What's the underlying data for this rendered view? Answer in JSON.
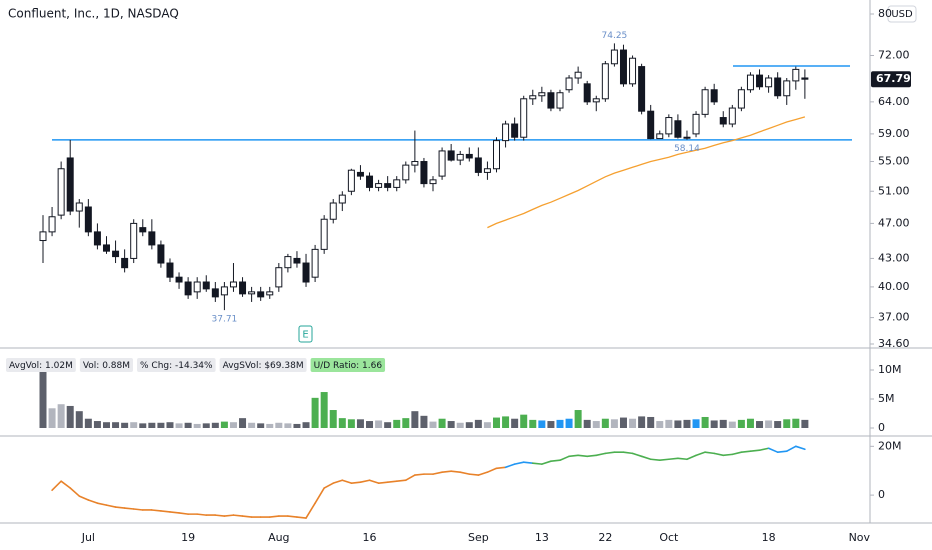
{
  "chart_data": [
    {
      "type": "candlestick",
      "title": "Confluent, Inc., 1D, NASDAQ",
      "currency": "USD",
      "earnings_marker": "E",
      "log_scale": true,
      "color_up": "#ffffff",
      "color_down": "#131722",
      "categories": [
        null,
        null,
        null,
        null,
        null,
        "Jul",
        null,
        null,
        null,
        null,
        null,
        null,
        null,
        null,
        null,
        null,
        "19",
        null,
        null,
        null,
        null,
        null,
        null,
        null,
        null,
        null,
        "Aug",
        null,
        null,
        null,
        null,
        null,
        null,
        null,
        null,
        null,
        "16",
        null,
        null,
        null,
        null,
        null,
        null,
        null,
        null,
        null,
        null,
        null,
        "Sep",
        null,
        null,
        null,
        null,
        null,
        null,
        "13",
        null,
        null,
        null,
        null,
        null,
        null,
        "22",
        null,
        null,
        null,
        null,
        null,
        null,
        "Oct",
        null,
        null,
        null,
        null,
        null,
        null,
        null,
        null,
        null,
        null,
        "18",
        null,
        null,
        null,
        null,
        null,
        null,
        null,
        null,
        null,
        "Nov"
      ],
      "open": [
        45,
        46,
        48,
        55.5,
        48.5,
        49,
        46,
        44.5,
        43.8,
        43,
        43,
        46.5,
        46,
        44.5,
        42.5,
        41,
        40.5,
        39.5,
        40.5,
        39.8,
        39.2,
        40,
        40.5,
        39.3,
        39.5,
        39.2,
        40,
        42,
        43,
        42.5,
        41,
        44,
        47.5,
        49.5,
        51,
        53.5,
        53,
        51.5,
        52,
        51.5,
        52.5,
        54.5,
        55,
        52,
        53,
        56.5,
        55.2,
        56,
        55.5,
        53.5,
        54,
        58,
        60.5,
        58.5,
        64.5,
        65,
        65.5,
        63,
        66,
        68,
        67,
        64,
        64.5,
        70.5,
        73,
        67,
        70,
        62.5,
        58.3,
        59,
        61,
        58.5,
        59,
        62,
        66,
        61.5,
        60.5,
        63,
        66,
        68.5,
        66.5,
        68,
        65,
        67.5,
        68,
        null,
        null,
        null,
        null,
        null,
        null
      ],
      "high": [
        48,
        49,
        55,
        58.1,
        50,
        50,
        47,
        45.5,
        45,
        44,
        47.5,
        47.5,
        47.5,
        45,
        43,
        41.5,
        41,
        41,
        41.2,
        40.5,
        40.5,
        42.5,
        41,
        40,
        40,
        40,
        42.5,
        43.5,
        43.8,
        43.5,
        44.5,
        48,
        50,
        51,
        54,
        54.5,
        53.5,
        52.5,
        53,
        53,
        55,
        59.5,
        55.5,
        53,
        57,
        57.5,
        56.5,
        57,
        57,
        55,
        58.5,
        61,
        61.5,
        65,
        66,
        66.5,
        66,
        66,
        68.5,
        70,
        67.5,
        65,
        71,
        74.25,
        74,
        72,
        70.5,
        63.5,
        59.5,
        62,
        62,
        59.5,
        62.5,
        66.5,
        67,
        62.5,
        63.5,
        66.5,
        69,
        69.5,
        68.5,
        69,
        68,
        70,
        69.5,
        null,
        null,
        null,
        null,
        null,
        null
      ],
      "low": [
        42.5,
        45.5,
        47.5,
        48,
        46.5,
        45.5,
        44,
        43.5,
        42.5,
        41.5,
        42.5,
        45.5,
        44,
        42,
        40.5,
        39.8,
        38.8,
        38.8,
        39.5,
        38.5,
        37.71,
        39.5,
        39,
        38.5,
        38.6,
        38.8,
        39.5,
        41.5,
        42,
        40,
        40.5,
        43.5,
        47,
        48.5,
        50.5,
        52.5,
        51,
        51,
        51,
        51,
        52,
        53.5,
        51.5,
        51,
        52.5,
        55,
        54.5,
        55,
        53,
        52.5,
        53.5,
        57,
        58,
        58,
        63.5,
        64,
        62.5,
        62.5,
        65.5,
        67,
        63.5,
        62.5,
        64,
        70,
        66.5,
        66.5,
        62,
        58.2,
        58.3,
        58.5,
        58.3,
        58.14,
        58.5,
        61.5,
        63.5,
        60,
        60,
        62.5,
        65.5,
        66,
        65.5,
        64.5,
        63.5,
        66,
        64.5,
        null,
        null,
        null,
        null,
        null,
        null
      ],
      "close": [
        46,
        47.8,
        54,
        48.5,
        49.5,
        46,
        44.5,
        43.8,
        43.2,
        42,
        47,
        46,
        44.5,
        42.5,
        41,
        40.5,
        39.2,
        40.5,
        39.8,
        39,
        40,
        40.5,
        39.3,
        39.5,
        39,
        39.5,
        42,
        43.2,
        42.5,
        40.5,
        44,
        47.5,
        49.5,
        50.5,
        53.8,
        53,
        51.5,
        52,
        51.5,
        52.5,
        54.5,
        55,
        52,
        52.5,
        56.5,
        55.2,
        56,
        55.5,
        53.5,
        54,
        58,
        60.5,
        58.5,
        64.5,
        65,
        65.5,
        63,
        65.5,
        68,
        69,
        64,
        64.5,
        70.5,
        73,
        67,
        71.5,
        62.5,
        58.3,
        59,
        61.5,
        58.5,
        58.5,
        62,
        66,
        64,
        60.5,
        63,
        66,
        68.5,
        66.5,
        68,
        65,
        67.5,
        69.5,
        67.79,
        null,
        null,
        null,
        null,
        null,
        null
      ],
      "ma": {
        "color": "#f5a030",
        "values": [
          null,
          null,
          null,
          null,
          null,
          null,
          null,
          null,
          null,
          null,
          null,
          null,
          null,
          null,
          null,
          null,
          null,
          null,
          null,
          null,
          null,
          null,
          null,
          null,
          null,
          null,
          null,
          null,
          null,
          null,
          null,
          null,
          null,
          null,
          null,
          null,
          null,
          null,
          null,
          null,
          null,
          null,
          null,
          null,
          null,
          null,
          null,
          null,
          null,
          46.5,
          47,
          47.4,
          47.8,
          48.2,
          48.7,
          49.2,
          49.6,
          50.1,
          50.6,
          51.1,
          51.7,
          52.3,
          52.9,
          53.4,
          53.8,
          54.2,
          54.6,
          55,
          55.3,
          55.6,
          56,
          56.3,
          56.6,
          56.9,
          57.3,
          57.7,
          58,
          58.4,
          58.8,
          59.3,
          59.8,
          60.3,
          60.8,
          61.2,
          61.6,
          null,
          null,
          null,
          null,
          null,
          null
        ]
      },
      "levels": {
        "color": "#2196f3",
        "values": [
          58.1,
          70.1
        ]
      },
      "annotations": [
        74.25,
        37.71,
        58.14
      ],
      "last_price": 67.79,
      "ylim": [
        34.6,
        80
      ],
      "yticks": [
        80,
        {
          "value": 72,
          "label": "72.00"
        },
        {
          "value": 64,
          "label": "64.00"
        },
        {
          "value": 59,
          "label": "59.00"
        },
        {
          "value": 55,
          "label": "55.00"
        },
        {
          "value": 51,
          "label": "51.00"
        },
        {
          "value": 47,
          "label": "47.00"
        },
        {
          "value": 43,
          "label": "43.00"
        },
        {
          "value": 40,
          "label": "40.00"
        },
        {
          "value": 37,
          "label": "37.00"
        },
        {
          "value": 34.6,
          "label": "34.60"
        }
      ]
    },
    {
      "type": "bar",
      "stats": [
        "AvgVol: 1.02M",
        "Vol: 0.88M",
        "% Chg: -14.34%",
        "AvgSVol: $69.38M",
        "U/D Ratio: 1.66"
      ],
      "values": [
        9.7,
        3.4,
        4.1,
        3.8,
        2.9,
        1.6,
        1.2,
        1.0,
        1.0,
        0.9,
        1.0,
        0.8,
        0.9,
        0.9,
        1.0,
        0.8,
        0.9,
        0.7,
        0.8,
        0.9,
        1.1,
        1.0,
        1.7,
        0.9,
        0.8,
        0.7,
        0.9,
        0.8,
        0.7,
        1.0,
        5.2,
        6.2,
        3.1,
        1.7,
        1.5,
        1.5,
        1.2,
        1.3,
        1.0,
        1.4,
        1.7,
        2.9,
        2.1,
        1.1,
        1.6,
        1.2,
        0.9,
        1.0,
        1.4,
        1.0,
        1.8,
        2.0,
        1.6,
        2.3,
        1.4,
        1.3,
        1.2,
        1.4,
        1.6,
        3.1,
        1.4,
        1.2,
        1.6,
        1.5,
        1.8,
        1.6,
        2.0,
        1.9,
        1.2,
        1.4,
        1.3,
        1.4,
        1.5,
        1.9,
        1.3,
        1.4,
        1.1,
        1.4,
        1.6,
        1.2,
        1.3,
        1.2,
        1.5,
        1.6,
        1.4,
        null,
        null,
        null,
        null,
        null,
        null
      ],
      "colors": [
        "#5d606b",
        "#b2b5be",
        "#b2b5be",
        "#5d606b",
        "#5d606b",
        "#5d606b",
        "#5d606b",
        "#5d606b",
        "#5d606b",
        "#5d606b",
        "#b2b5be",
        "#5d606b",
        "#5d606b",
        "#5d606b",
        "#5d606b",
        "#b2b5be",
        "#5d606b",
        "#b2b5be",
        "#5d606b",
        "#5d606b",
        "#4caf50",
        "#b2b5be",
        "#5d606b",
        "#b2b5be",
        "#5d606b",
        "#b2b5be",
        "#b2b5be",
        "#b2b5be",
        "#5d606b",
        "#5d606b",
        "#4caf50",
        "#4caf50",
        "#4caf50",
        "#4caf50",
        "#4caf50",
        "#5d606b",
        "#5d606b",
        "#b2b5be",
        "#5d606b",
        "#4caf50",
        "#4caf50",
        "#5d606b",
        "#5d606b",
        "#b2b5be",
        "#4caf50",
        "#5d606b",
        "#b2b5be",
        "#5d606b",
        "#5d606b",
        "#b2b5be",
        "#4caf50",
        "#4caf50",
        "#5d606b",
        "#4caf50",
        "#4caf50",
        "#2196f3",
        "#5d606b",
        "#2196f3",
        "#2196f3",
        "#4caf50",
        "#5d606b",
        "#b2b5be",
        "#4caf50",
        "#b2b5be",
        "#5d606b",
        "#b2b5be",
        "#5d606b",
        "#5d606b",
        "#b2b5be",
        "#b2b5be",
        "#5d606b",
        "#5d606b",
        "#2196f3",
        "#4caf50",
        "#5d606b",
        "#5d606b",
        "#b2b5be",
        "#4caf50",
        "#4caf50",
        "#5d606b",
        "#b2b5be",
        "#5d606b",
        "#4caf50",
        "#4caf50",
        "#5d606b",
        null,
        null,
        null,
        null,
        null,
        null
      ],
      "ylim": [
        0,
        13
      ],
      "yticks": [
        {
          "value": 10,
          "label": "10M"
        },
        {
          "value": 5,
          "label": "5M"
        },
        0
      ]
    },
    {
      "type": "line",
      "values": [
        null,
        2.0,
        5.7,
        2.9,
        -0.4,
        -2.0,
        -3.3,
        -4.1,
        -4.9,
        -5.3,
        -5.7,
        -6.1,
        -6.1,
        -6.5,
        -6.9,
        -7.3,
        -7.8,
        -7.8,
        -8.2,
        -8.2,
        -8.6,
        -8.2,
        -8.6,
        -9.0,
        -9.0,
        -9.0,
        -8.6,
        -8.6,
        -9.0,
        -9.4,
        -3.3,
        2.9,
        4.9,
        6.1,
        4.9,
        5.3,
        6.1,
        4.9,
        5.3,
        5.7,
        6.1,
        8.2,
        8.6,
        8.6,
        9.4,
        9.8,
        9.4,
        8.6,
        8.2,
        9.4,
        11.0,
        11.4,
        12.7,
        13.5,
        13.1,
        12.7,
        13.9,
        14.3,
        15.9,
        16.3,
        15.9,
        16.3,
        17.1,
        17.6,
        17.6,
        17.1,
        15.9,
        14.7,
        14.3,
        14.7,
        15.1,
        14.7,
        16.3,
        17.6,
        17.1,
        16.3,
        16.7,
        17.6,
        18.0,
        18.4,
        19.2,
        17.6,
        18.0,
        20.0,
        18.8,
        null,
        null,
        null,
        null,
        null,
        null
      ],
      "colors": [
        null,
        "#e8822a",
        "#e8822a",
        "#e8822a",
        "#e8822a",
        "#e8822a",
        "#e8822a",
        "#e8822a",
        "#e8822a",
        "#e8822a",
        "#e8822a",
        "#e8822a",
        "#e8822a",
        "#e8822a",
        "#e8822a",
        "#e8822a",
        "#e8822a",
        "#e8822a",
        "#e8822a",
        "#e8822a",
        "#e8822a",
        "#e8822a",
        "#e8822a",
        "#e8822a",
        "#e8822a",
        "#e8822a",
        "#e8822a",
        "#e8822a",
        "#e8822a",
        "#e8822a",
        "#e8822a",
        "#e8822a",
        "#e8822a",
        "#e8822a",
        "#e8822a",
        "#e8822a",
        "#e8822a",
        "#e8822a",
        "#e8822a",
        "#e8822a",
        "#e8822a",
        "#e8822a",
        "#e8822a",
        "#e8822a",
        "#e8822a",
        "#e8822a",
        "#e8822a",
        "#e8822a",
        "#e8822a",
        "#e8822a",
        "#e8822a",
        "#e8822a",
        "#2196f3",
        "#2196f3",
        "#2196f3",
        "#4caf50",
        "#4caf50",
        "#4caf50",
        "#4caf50",
        "#4caf50",
        "#4caf50",
        "#4caf50",
        "#4caf50",
        "#4caf50",
        "#4caf50",
        "#4caf50",
        "#4caf50",
        "#4caf50",
        "#4caf50",
        "#4caf50",
        "#4caf50",
        "#4caf50",
        "#4caf50",
        "#4caf50",
        "#4caf50",
        "#4caf50",
        "#4caf50",
        "#4caf50",
        "#4caf50",
        "#4caf50",
        "#4caf50",
        "#2196f3",
        "#2196f3",
        "#2196f3",
        "#2196f3",
        null,
        null,
        null,
        null,
        null,
        null
      ],
      "ylim": [
        -10,
        23
      ],
      "yticks": [
        {
          "value": 20,
          "label": "20M"
        },
        0
      ]
    }
  ]
}
